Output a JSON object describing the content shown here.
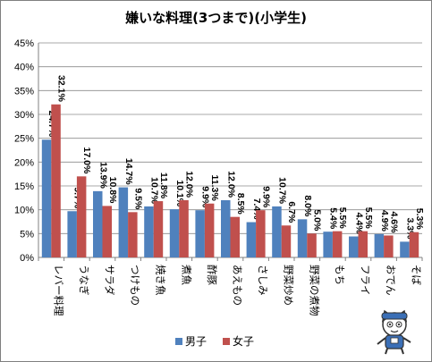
{
  "title": "嫌いな料理(3つまで)(小学生)",
  "colors": {
    "male": "#4f81bd",
    "female": "#c0504d",
    "grid": "#8c8c8c"
  },
  "legend": {
    "male": "男子",
    "female": "女子"
  },
  "chart_data": {
    "type": "bar",
    "title": "嫌いな料理(3つまで)(小学生)",
    "categories": [
      "レバー料理",
      "うなぎ",
      "サラダ",
      "つけもの",
      "焼き魚",
      "煮魚",
      "酢豚",
      "あえもの",
      "さしみ",
      "野菜炒め",
      "野菜の煮物",
      "もち",
      "フライ",
      "おでん",
      "そば"
    ],
    "series": [
      {
        "name": "男子",
        "values": [
          24.7,
          9.7,
          13.9,
          14.7,
          10.7,
          10.1,
          9.9,
          12.0,
          7.4,
          10.7,
          8.0,
          5.4,
          4.4,
          4.9,
          3.3
        ]
      },
      {
        "name": "女子",
        "values": [
          32.1,
          17.0,
          10.8,
          9.5,
          11.8,
          12.0,
          11.3,
          8.5,
          9.9,
          6.7,
          5.0,
          5.5,
          5.5,
          4.6,
          5.3
        ]
      }
    ],
    "value_labels": [
      [
        "24.7%",
        "9.7%",
        "13.9%",
        "14.7%",
        "10.7%",
        "10.1%",
        "9.9%",
        "12.0%",
        "7.4%",
        "10.7%",
        "8.0%",
        "5.4%",
        "4.4%",
        "4.9%",
        "3.3%"
      ],
      [
        "32.1%",
        "17.0%",
        "10.8%",
        "9.5%",
        "11.8%",
        "12.0%",
        "11.3%",
        "8.5%",
        "9.9%",
        "6.7%",
        "5.0%",
        "5.5%",
        "5.5%",
        "4.6%",
        "5.3%"
      ]
    ],
    "yticks": [
      "0%",
      "5%",
      "10%",
      "15%",
      "20%",
      "25%",
      "30%",
      "35%",
      "40%",
      "45%"
    ],
    "ylim": [
      0,
      45
    ],
    "grid": true,
    "legend_position": "bottom"
  }
}
